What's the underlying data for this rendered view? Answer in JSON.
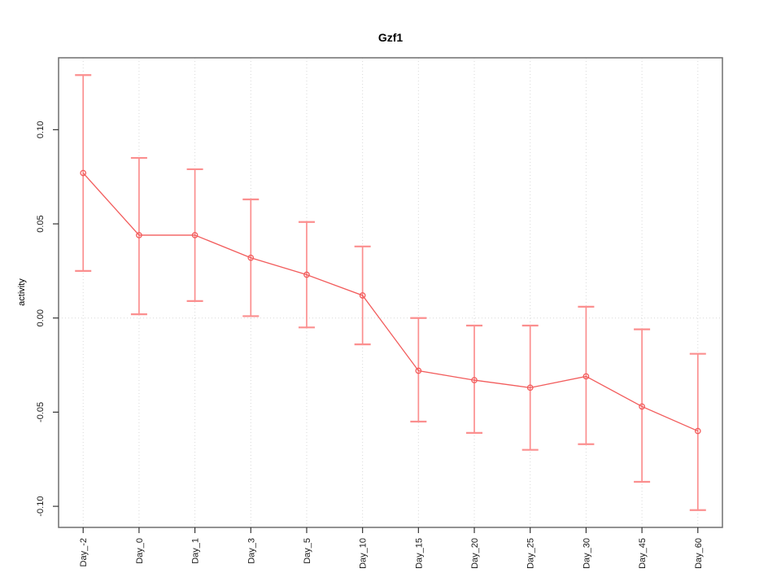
{
  "chart_data": {
    "type": "line",
    "title": "Gzf1",
    "xlabel": "",
    "ylabel": "activity",
    "categories": [
      "Day_-2",
      "Day_0",
      "Day_1",
      "Day_3",
      "Day_5",
      "Day_10",
      "Day_15",
      "Day_20",
      "Day_25",
      "Day_30",
      "Day_45",
      "Day_60"
    ],
    "series": [
      {
        "name": "activity",
        "values": [
          0.077,
          0.044,
          0.044,
          0.032,
          0.023,
          0.012,
          -0.028,
          -0.033,
          -0.037,
          -0.031,
          -0.047,
          -0.06
        ],
        "error_high": [
          0.129,
          0.085,
          0.079,
          0.063,
          0.051,
          0.038,
          0.0,
          -0.004,
          -0.004,
          0.006,
          -0.006,
          -0.019
        ],
        "error_low": [
          0.025,
          0.002,
          0.009,
          0.001,
          -0.005,
          -0.014,
          -0.055,
          -0.061,
          -0.07,
          -0.067,
          -0.087,
          -0.102
        ]
      }
    ],
    "marker": "open-circle",
    "legend": "none",
    "xlim": [
      0.56,
      12.44
    ],
    "ylim": [
      -0.1112,
      0.1382
    ],
    "yticks": {
      "values": [
        -0.1,
        -0.05,
        0.0,
        0.05,
        0.1
      ],
      "labels": [
        "-0.10",
        "-0.05",
        "0.00",
        "0.05",
        "0.10"
      ]
    },
    "grid": {
      "vertical_at_each_category": true,
      "horizontal_zero_line": true,
      "style": "dotted"
    },
    "colors": {
      "series": "#f25c5c",
      "errorbar": "#fb8f8f",
      "grid": "#d8d8d8",
      "box": "#6f6f6f",
      "tick": "#333333",
      "text": "#1a1a1a",
      "background": "#ffffff"
    }
  }
}
